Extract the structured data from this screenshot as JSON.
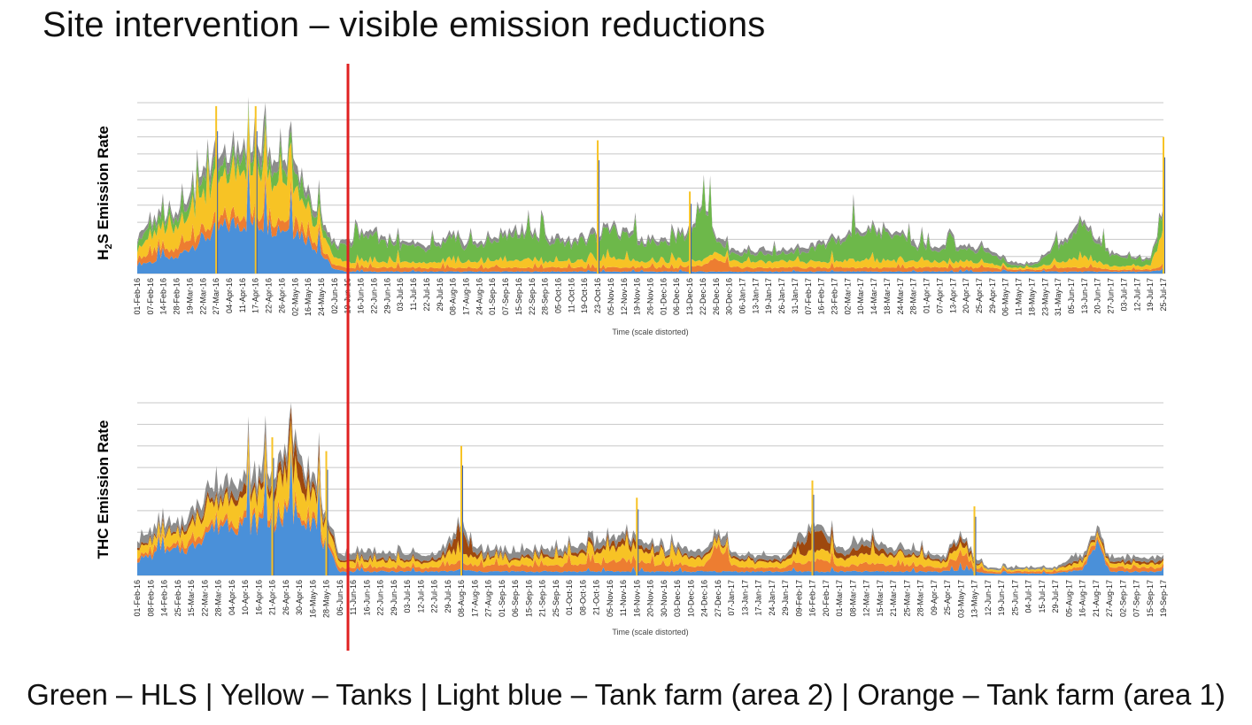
{
  "title": "Site intervention – visible emission reductions",
  "legend_text": "Green – HLS | Yellow – Tanks | Light blue – Tank farm (area 2) | Orange – Tank farm (area 1)",
  "colors": {
    "hls": "#6db84a",
    "tanks": "#f7c325",
    "tank_farm_area2": "#4a90d9",
    "tank_farm_area1": "#ed7d31",
    "grey": "#8c8c8c",
    "brown": "#9e480e",
    "darkblue": "#3b5fad",
    "intervention_line": "#e02020",
    "grid": "#c8c8c8"
  },
  "chart_data": [
    {
      "type": "area",
      "ylabel_main": "H",
      "ylabel_sub": "2",
      "ylabel_rest": "S Emission Rate",
      "xlabel": "Time (scale distorted)",
      "categories": [
        "01-Feb-16",
        "07-Feb-16",
        "14-Feb-16",
        "28-Feb-16",
        "19-Mar-16",
        "22-Mar-16",
        "27-Mar-16",
        "04-Apr-16",
        "11-Apr-16",
        "17-Apr-16",
        "22-Apr-16",
        "26-Apr-16",
        "02-May-16",
        "16-May-16",
        "24-May-16",
        "02-Jun-16",
        "10-Jun-16",
        "16-Jun-16",
        "22-Jun-16",
        "29-Jun-16",
        "03-Jul-16",
        "11-Jul-16",
        "22-Jul-16",
        "29-Jul-16",
        "08-Aug-16",
        "17-Aug-16",
        "24-Aug-16",
        "01-Sep-16",
        "07-Sep-16",
        "15-Sep-16",
        "22-Sep-16",
        "28-Sep-16",
        "05-Oct-16",
        "11-Oct-16",
        "19-Oct-16",
        "23-Oct-16",
        "05-Nov-16",
        "12-Nov-16",
        "19-Nov-16",
        "26-Nov-16",
        "01-Dec-16",
        "06-Dec-16",
        "13-Dec-16",
        "22-Dec-16",
        "26-Dec-16",
        "30-Dec-16",
        "06-Jan-17",
        "13-Jan-17",
        "19-Jan-17",
        "26-Jan-17",
        "31-Jan-17",
        "07-Feb-17",
        "16-Feb-17",
        "23-Feb-17",
        "02-Mar-17",
        "10-Mar-17",
        "14-Mar-17",
        "18-Mar-17",
        "24-Mar-17",
        "28-Mar-17",
        "01-Apr-17",
        "07-Apr-17",
        "13-Apr-17",
        "20-Apr-17",
        "25-Apr-17",
        "29-Apr-17",
        "06-May-17",
        "11-May-17",
        "18-May-17",
        "23-May-17",
        "31-May-17",
        "05-Jun-17",
        "13-Jun-17",
        "20-Jun-17",
        "27-Jun-17",
        "03-Jul-17",
        "12-Jul-17",
        "19-Jul-17",
        "25-Jul-17"
      ],
      "series": [
        {
          "key": "tank_farm_area2",
          "values": [
            5,
            6,
            7,
            8,
            14,
            18,
            22,
            25,
            27,
            26,
            25,
            24,
            23,
            18,
            10,
            2,
            1,
            1,
            1,
            1,
            1,
            1,
            1,
            1,
            1,
            1,
            1,
            1,
            1,
            1,
            1,
            1,
            1,
            1,
            1,
            1,
            1,
            1,
            1,
            1,
            1,
            1,
            1,
            1,
            1,
            1,
            1,
            1,
            1,
            1,
            1,
            1,
            1,
            1,
            1,
            1,
            1,
            1,
            1,
            1,
            1,
            1,
            1,
            1,
            1,
            1,
            1,
            1,
            1,
            1,
            1,
            1,
            1,
            1,
            1,
            1,
            1,
            1,
            2
          ]
        },
        {
          "key": "tank_farm_area1",
          "values": [
            3,
            4,
            4,
            4,
            5,
            5,
            5,
            5,
            5,
            5,
            5,
            5,
            5,
            4,
            3,
            2,
            2,
            2,
            2,
            2,
            2,
            2,
            2,
            2,
            2,
            2,
            2,
            2,
            2,
            2,
            2,
            2,
            2,
            2,
            2,
            2,
            2,
            2,
            2,
            2,
            2,
            2,
            3,
            3,
            8,
            3,
            2,
            2,
            2,
            2,
            2,
            2,
            2,
            2,
            2,
            2,
            2,
            2,
            2,
            2,
            2,
            2,
            2,
            2,
            2,
            2,
            1,
            1,
            1,
            1,
            2,
            2,
            2,
            2,
            1,
            1,
            1,
            1,
            2
          ]
        },
        {
          "key": "tanks",
          "values": [
            6,
            8,
            9,
            10,
            14,
            18,
            20,
            22,
            22,
            24,
            20,
            18,
            16,
            12,
            8,
            4,
            3,
            3,
            3,
            3,
            3,
            3,
            3,
            3,
            3,
            3,
            3,
            3,
            3,
            4,
            4,
            3,
            3,
            3,
            4,
            4,
            5,
            4,
            3,
            3,
            3,
            3,
            3,
            3,
            3,
            3,
            3,
            3,
            3,
            3,
            3,
            3,
            3,
            3,
            4,
            4,
            4,
            4,
            3,
            3,
            3,
            3,
            3,
            3,
            3,
            2,
            1,
            1,
            1,
            2,
            3,
            4,
            5,
            3,
            2,
            2,
            2,
            2,
            18
          ]
        },
        {
          "key": "hls",
          "values": [
            4,
            5,
            5,
            5,
            6,
            6,
            6,
            6,
            6,
            6,
            6,
            6,
            6,
            5,
            4,
            4,
            10,
            12,
            14,
            10,
            8,
            8,
            6,
            8,
            10,
            8,
            8,
            10,
            12,
            14,
            12,
            10,
            10,
            9,
            10,
            12,
            14,
            12,
            10,
            10,
            10,
            12,
            14,
            36,
            6,
            4,
            4,
            4,
            4,
            4,
            4,
            5,
            8,
            10,
            12,
            14,
            14,
            14,
            12,
            8,
            6,
            6,
            6,
            6,
            6,
            5,
            2,
            1,
            1,
            4,
            8,
            12,
            16,
            10,
            6,
            4,
            3,
            3,
            8
          ]
        },
        {
          "key": "grey",
          "values": [
            2,
            3,
            3,
            3,
            4,
            5,
            6,
            6,
            6,
            6,
            6,
            5,
            5,
            4,
            3,
            2,
            2,
            2,
            2,
            2,
            2,
            2,
            2,
            2,
            2,
            2,
            2,
            2,
            2,
            2,
            2,
            2,
            2,
            2,
            2,
            2,
            2,
            2,
            2,
            2,
            2,
            2,
            2,
            2,
            2,
            2,
            2,
            2,
            2,
            2,
            2,
            2,
            2,
            2,
            2,
            2,
            2,
            2,
            2,
            2,
            2,
            2,
            2,
            2,
            2,
            2,
            1,
            1,
            1,
            1,
            2,
            2,
            2,
            2,
            1,
            1,
            1,
            1,
            2
          ]
        }
      ],
      "spikes": [
        {
          "category": "27-Mar-16",
          "value": 98
        },
        {
          "category": "17-Apr-16",
          "value": 98
        },
        {
          "category": "23-Oct-16",
          "value": 78
        },
        {
          "category": "13-Dec-16",
          "value": 48
        },
        {
          "category": "25-Jul-17",
          "value": 80
        }
      ]
    },
    {
      "type": "area",
      "ylabel_main": "THC Emission Rate",
      "xlabel": "Time (scale distorted)",
      "categories": [
        "01-Feb-16",
        "08-Feb-16",
        "14-Feb-16",
        "25-Feb-16",
        "15-Mar-16",
        "22-Mar-16",
        "28-Mar-16",
        "04-Apr-16",
        "10-Apr-16",
        "16-Apr-16",
        "21-Apr-16",
        "26-Apr-16",
        "30-Apr-16",
        "16-May-16",
        "28-May-16",
        "06-Jun-16",
        "11-Jun-16",
        "16-Jun-16",
        "22-Jun-16",
        "29-Jun-16",
        "03-Jul-16",
        "12-Jul-16",
        "22-Jul-16",
        "29-Jul-16",
        "08-Aug-16",
        "17-Aug-16",
        "27-Aug-16",
        "01-Sep-16",
        "06-Sep-16",
        "15-Sep-16",
        "21-Sep-16",
        "25-Sep-16",
        "01-Oct-16",
        "08-Oct-16",
        "21-Oct-16",
        "05-Nov-16",
        "11-Nov-16",
        "16-Nov-16",
        "20-Nov-16",
        "30-Nov-16",
        "03-Dec-16",
        "10-Dec-16",
        "24-Dec-16",
        "27-Dec-16",
        "07-Jan-17",
        "13-Jan-17",
        "17-Jan-17",
        "24-Jan-17",
        "29-Jan-17",
        "09-Feb-17",
        "16-Feb-17",
        "20-Feb-17",
        "01-Mar-17",
        "08-Mar-17",
        "12-Mar-17",
        "15-Mar-17",
        "21-Mar-17",
        "25-Mar-17",
        "28-Mar-17",
        "09-Apr-17",
        "25-Apr-17",
        "03-May-17",
        "13-May-17",
        "12-Jun-17",
        "19-Jun-17",
        "25-Jun-17",
        "04-Jul-17",
        "15-Jul-17",
        "29-Jul-17",
        "05-Aug-17",
        "16-Aug-17",
        "21-Aug-17",
        "27-Aug-17",
        "02-Sep-17",
        "07-Sep-17",
        "15-Sep-17",
        "19-Sep-17"
      ],
      "series": [
        {
          "key": "tank_farm_area2",
          "values": [
            8,
            10,
            11,
            13,
            14,
            22,
            26,
            28,
            26,
            27,
            28,
            30,
            34,
            28,
            14,
            2,
            2,
            2,
            2,
            2,
            2,
            2,
            2,
            2,
            3,
            2,
            2,
            2,
            2,
            2,
            2,
            2,
            2,
            2,
            2,
            2,
            2,
            2,
            2,
            2,
            2,
            2,
            2,
            2,
            2,
            2,
            2,
            2,
            2,
            2,
            2,
            2,
            2,
            2,
            2,
            2,
            2,
            2,
            2,
            2,
            2,
            3,
            2,
            1,
            1,
            1,
            1,
            1,
            1,
            2,
            3,
            18,
            2,
            2,
            2,
            2,
            2
          ]
        },
        {
          "key": "tank_farm_area1",
          "values": [
            2,
            2,
            2,
            2,
            3,
            3,
            3,
            3,
            3,
            3,
            3,
            3,
            3,
            3,
            2,
            2,
            2,
            2,
            2,
            2,
            2,
            2,
            2,
            3,
            4,
            3,
            3,
            3,
            3,
            3,
            3,
            3,
            4,
            4,
            4,
            5,
            6,
            5,
            4,
            3,
            3,
            3,
            3,
            14,
            3,
            2,
            2,
            2,
            2,
            4,
            6,
            5,
            3,
            3,
            4,
            4,
            3,
            3,
            3,
            2,
            2,
            8,
            2,
            1,
            1,
            1,
            1,
            1,
            1,
            1,
            2,
            2,
            2,
            2,
            2,
            2,
            2
          ]
        },
        {
          "key": "tanks",
          "values": [
            4,
            5,
            5,
            6,
            7,
            8,
            9,
            10,
            10,
            12,
            12,
            14,
            16,
            12,
            8,
            3,
            3,
            3,
            3,
            3,
            3,
            3,
            3,
            4,
            5,
            4,
            3,
            3,
            3,
            4,
            4,
            4,
            5,
            5,
            5,
            6,
            7,
            6,
            5,
            4,
            4,
            4,
            4,
            3,
            3,
            3,
            3,
            3,
            3,
            4,
            5,
            5,
            4,
            4,
            5,
            5,
            4,
            4,
            4,
            3,
            3,
            5,
            2,
            1,
            1,
            1,
            1,
            1,
            1,
            2,
            2,
            2,
            2,
            2,
            2,
            2,
            2
          ]
        },
        {
          "key": "brown",
          "values": [
            1,
            1,
            1,
            1,
            2,
            2,
            2,
            3,
            3,
            3,
            4,
            6,
            8,
            4,
            2,
            1,
            1,
            1,
            1,
            1,
            1,
            1,
            1,
            2,
            12,
            2,
            1,
            1,
            1,
            1,
            1,
            1,
            1,
            2,
            2,
            2,
            3,
            2,
            2,
            1,
            1,
            1,
            1,
            1,
            1,
            1,
            1,
            1,
            1,
            4,
            12,
            6,
            2,
            2,
            5,
            3,
            1,
            1,
            1,
            1,
            1,
            3,
            1,
            0,
            0,
            0,
            0,
            0,
            0,
            1,
            1,
            1,
            1,
            1,
            1,
            1,
            1
          ]
        },
        {
          "key": "grey",
          "values": [
            3,
            4,
            4,
            4,
            5,
            5,
            6,
            6,
            6,
            6,
            6,
            6,
            6,
            5,
            3,
            3,
            3,
            3,
            3,
            3,
            3,
            3,
            3,
            3,
            3,
            3,
            3,
            3,
            3,
            3,
            3,
            3,
            3,
            3,
            3,
            3,
            3,
            3,
            3,
            3,
            3,
            3,
            3,
            3,
            2,
            2,
            2,
            2,
            2,
            3,
            3,
            3,
            3,
            3,
            3,
            3,
            3,
            3,
            2,
            2,
            2,
            2,
            2,
            1,
            1,
            1,
            1,
            1,
            1,
            2,
            2,
            2,
            2,
            2,
            2,
            2,
            2
          ]
        }
      ],
      "spikes": [
        {
          "category": "21-Apr-16",
          "value": 80
        },
        {
          "category": "28-May-16",
          "value": 72
        },
        {
          "category": "08-Aug-16",
          "value": 75
        },
        {
          "category": "16-Nov-16",
          "value": 45
        },
        {
          "category": "16-Feb-17",
          "value": 55
        },
        {
          "category": "13-May-17",
          "value": 40
        }
      ]
    }
  ]
}
